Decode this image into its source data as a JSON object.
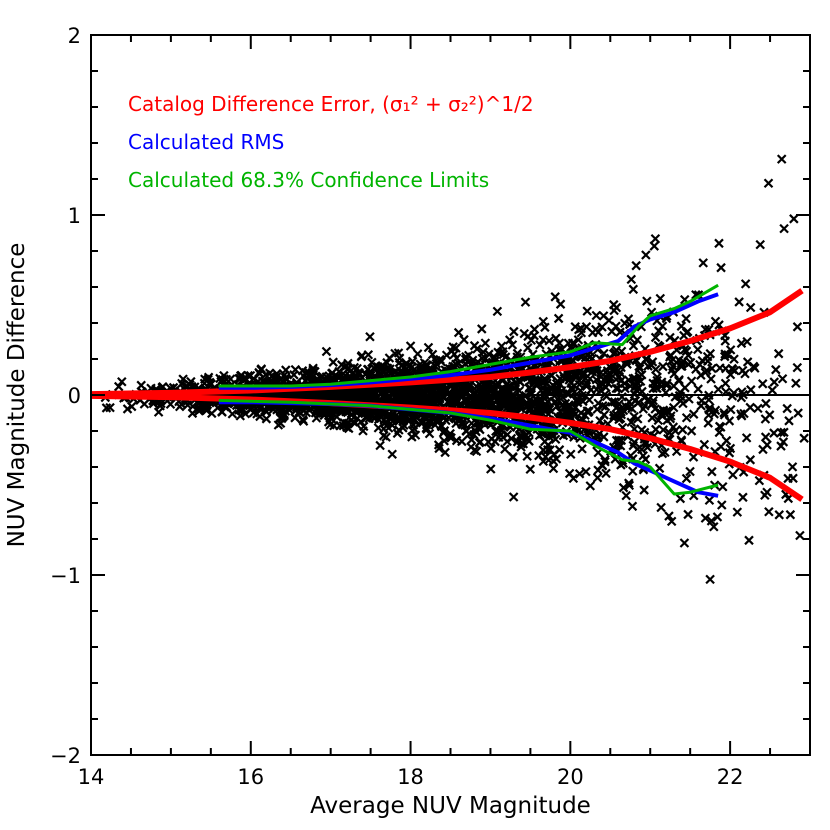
{
  "chart_data": {
    "type": "scatter",
    "title": "",
    "xlabel": "Average NUV Magnitude",
    "ylabel": "NUV Magnitude Difference",
    "xlim": [
      14,
      23
    ],
    "ylim": [
      -2,
      2
    ],
    "x_ticks": [
      "14",
      "16",
      "18",
      "20",
      "22"
    ],
    "y_ticks": [
      "2",
      "1",
      "0",
      "−1",
      "−2"
    ],
    "grid": false,
    "zero_line": true,
    "legend": {
      "placement": "top-left",
      "entries": [
        {
          "prefix": "Catalog Difference Error, ",
          "formula": "(σ₁² + σ₂²)^1/2",
          "color": "#ff0000"
        },
        {
          "prefix": "Calculated RMS",
          "formula": "",
          "color": "#0000ff"
        },
        {
          "prefix": "Calculated 68.3% Confidence Limits",
          "formula": "",
          "color": "#00b400"
        }
      ]
    },
    "scatter_color": "#000000",
    "scatter_marker": "x",
    "error_curve": {
      "color": "#ff0000",
      "x": [
        14.0,
        15.0,
        16.0,
        17.0,
        18.0,
        19.0,
        19.5,
        20.0,
        20.5,
        21.0,
        21.5,
        22.0,
        22.5,
        22.9
      ],
      "upper": [
        0.005,
        0.012,
        0.025,
        0.045,
        0.07,
        0.1,
        0.125,
        0.155,
        0.19,
        0.24,
        0.3,
        0.37,
        0.46,
        0.58
      ],
      "lower": [
        -0.005,
        -0.012,
        -0.025,
        -0.045,
        -0.07,
        -0.1,
        -0.125,
        -0.155,
        -0.19,
        -0.24,
        -0.3,
        -0.37,
        -0.46,
        -0.58
      ]
    },
    "rms_curve": {
      "color": "#0000ff",
      "x": [
        15.6,
        16.0,
        16.5,
        17.0,
        17.5,
        18.0,
        18.5,
        19.0,
        19.5,
        20.0,
        20.3,
        20.6,
        20.8,
        21.0,
        21.3,
        21.6,
        21.85
      ],
      "upper": [
        0.04,
        0.04,
        0.045,
        0.055,
        0.07,
        0.09,
        0.11,
        0.14,
        0.18,
        0.22,
        0.26,
        0.3,
        0.38,
        0.42,
        0.46,
        0.52,
        0.56
      ],
      "lower": [
        -0.04,
        -0.04,
        -0.045,
        -0.05,
        -0.06,
        -0.08,
        -0.1,
        -0.13,
        -0.17,
        -0.21,
        -0.26,
        -0.32,
        -0.38,
        -0.42,
        -0.48,
        -0.54,
        -0.56
      ]
    },
    "confidence_curve": {
      "color": "#00b400",
      "x": [
        15.6,
        16.0,
        16.5,
        17.0,
        17.5,
        18.0,
        18.5,
        19.0,
        19.5,
        20.0,
        20.3,
        20.65,
        20.85,
        21.0,
        21.3,
        21.5,
        21.85
      ],
      "upper": [
        0.05,
        0.05,
        0.05,
        0.06,
        0.08,
        0.1,
        0.13,
        0.17,
        0.21,
        0.24,
        0.29,
        0.28,
        0.38,
        0.44,
        0.48,
        0.52,
        0.61
      ],
      "lower": [
        -0.03,
        -0.035,
        -0.04,
        -0.05,
        -0.06,
        -0.08,
        -0.1,
        -0.14,
        -0.19,
        -0.2,
        -0.28,
        -0.36,
        -0.37,
        -0.4,
        -0.55,
        -0.54,
        -0.5
      ]
    }
  }
}
